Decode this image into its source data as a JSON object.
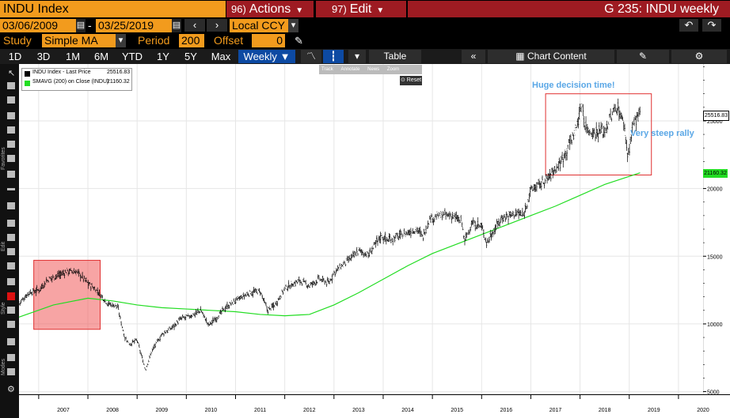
{
  "header": {
    "ticker": "INDU Index",
    "actions_num": "96)",
    "actions_label": "Actions",
    "edit_num": "97)",
    "edit_label": "Edit",
    "title": "G 235: INDU weekly"
  },
  "controls": {
    "start_date": "03/06/2009",
    "dash": "-",
    "end_date": "03/25/2019",
    "currency": "Local CCY",
    "study_label": "Study",
    "study_value": "Simple MA",
    "period_label": "Period",
    "period_value": "200",
    "offset_label": "Offset",
    "offset_value": "0"
  },
  "tabs": [
    "1D",
    "3D",
    "1M",
    "6M",
    "YTD",
    "1Y",
    "5Y",
    "Max",
    "Weekly"
  ],
  "active_tab": "Weekly",
  "toolbar": {
    "table_label": "Table",
    "chart_content_label": "Chart Content"
  },
  "mini_toolbar": {
    "track": "Track",
    "annotate": "Annotate",
    "news": "News",
    "zoom": "Zoom",
    "reset": "Reset"
  },
  "left_toolbar_labels": [
    "Favorites",
    "Edit",
    "Style",
    "Modes"
  ],
  "legend": [
    {
      "label": "INDU Index - Last Price",
      "value": "25516.83",
      "color": "#000000"
    },
    {
      "label": "SMAVG (200)  on Close (INDU)",
      "value": "21160.32",
      "color": "#00cc00"
    }
  ],
  "annotations": {
    "decision": "Huge decision time!",
    "rally": "Very steep rally"
  },
  "colors": {
    "orange": "#f29b1d",
    "crimson": "#9e1b22",
    "price": "#000000",
    "sma": "#22dd22",
    "annotation_text": "#5aa7e6",
    "box_red": "#e03030"
  },
  "chart_data": {
    "type": "line",
    "x_tick_labels": [
      "2007",
      "2008",
      "2009",
      "2010",
      "2011",
      "2012",
      "2013",
      "2014",
      "2015",
      "2016",
      "2017",
      "2018",
      "2019",
      "2020"
    ],
    "y_tick_labels": [
      "5000",
      "10000",
      "15000",
      "20000",
      "25000"
    ],
    "ylim": [
      4800,
      29200
    ],
    "xlim": [
      2006.6,
      2020.5
    ],
    "last_price_label": "25516.83",
    "sma_label": "21160.32",
    "series": [
      {
        "name": "INDU Index - Last Price",
        "x": [
          2006.6,
          2006.8,
          2007.0,
          2007.2,
          2007.4,
          2007.6,
          2007.8,
          2008.0,
          2008.2,
          2008.4,
          2008.6,
          2008.75,
          2008.85,
          2009.0,
          2009.17,
          2009.3,
          2009.5,
          2009.7,
          2009.9,
          2010.1,
          2010.3,
          2010.45,
          2010.6,
          2010.8,
          2011.0,
          2011.3,
          2011.5,
          2011.65,
          2011.8,
          2012.0,
          2012.3,
          2012.5,
          2012.7,
          2012.9,
          2013.0,
          2013.3,
          2013.5,
          2013.7,
          2013.95,
          2014.1,
          2014.4,
          2014.7,
          2014.8,
          2014.95,
          2015.2,
          2015.4,
          2015.6,
          2015.65,
          2015.8,
          2016.0,
          2016.1,
          2016.4,
          2016.7,
          2016.85,
          2017.0,
          2017.3,
          2017.6,
          2017.9,
          2018.05,
          2018.1,
          2018.25,
          2018.5,
          2018.75,
          2018.9,
          2018.97,
          2019.1,
          2019.22
        ],
        "y": [
          11500,
          12300,
          12500,
          13300,
          13600,
          13900,
          13800,
          13000,
          12400,
          11500,
          11300,
          9000,
          8500,
          8800,
          6600,
          8000,
          9200,
          9700,
          10400,
          10600,
          11000,
          9900,
          10400,
          11200,
          11700,
          12300,
          12400,
          11000,
          11400,
          12600,
          13200,
          12800,
          13300,
          13000,
          13800,
          14700,
          15400,
          15100,
          16500,
          16200,
          16600,
          17000,
          16400,
          17800,
          18000,
          18000,
          17500,
          16100,
          17400,
          17200,
          16000,
          17800,
          18200,
          18000,
          19900,
          20600,
          21900,
          24200,
          26300,
          24600,
          24100,
          24300,
          26100,
          24700,
          22400,
          25000,
          25517
        ]
      },
      {
        "name": "SMAVG (200)  on Close (INDU)",
        "x": [
          2006.6,
          2007.3,
          2008.0,
          2008.5,
          2009.0,
          2009.5,
          2010.0,
          2010.5,
          2011.0,
          2011.5,
          2012.0,
          2012.5,
          2013.0,
          2013.5,
          2014.0,
          2014.5,
          2015.0,
          2015.5,
          2016.0,
          2016.5,
          2017.0,
          2017.5,
          2018.0,
          2018.5,
          2019.22
        ],
        "y": [
          10500,
          11400,
          11900,
          11700,
          11400,
          11200,
          11100,
          11000,
          10900,
          10700,
          10600,
          10700,
          11400,
          12300,
          13300,
          14300,
          15200,
          15900,
          16600,
          17300,
          18000,
          18700,
          19500,
          20300,
          21160
        ]
      }
    ]
  }
}
